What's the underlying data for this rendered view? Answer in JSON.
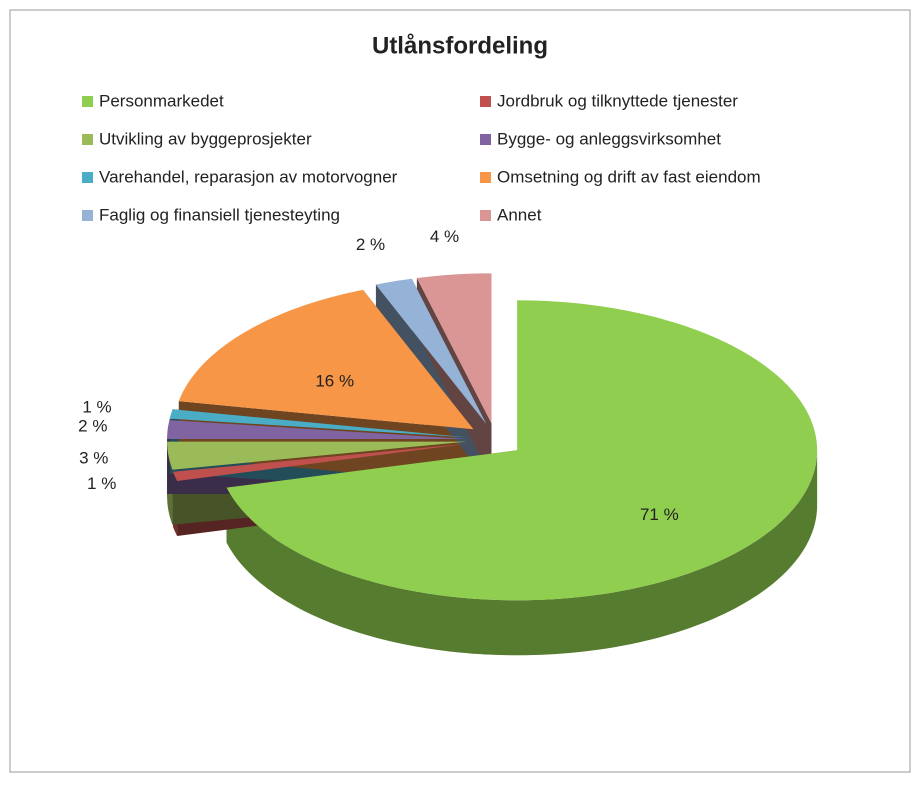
{
  "chart_data": {
    "type": "pie3d",
    "title": "Utlånsfordeling",
    "categories": [
      "Personmarkedet",
      "Jordbruk og tilknyttede tjenester",
      "Utvikling av byggeprosjekter",
      "Bygge- og anleggsvirksomhet",
      "Varehandel, reparasjon av motorvogner",
      "Omsetning og drift av fast eiendom",
      "Faglig og finansiell tjenesteyting",
      "Annet"
    ],
    "values": [
      71,
      1,
      3,
      2,
      1,
      16,
      2,
      4
    ],
    "value_labels": [
      "71 %",
      "1 %",
      "3 %",
      "2 %",
      "1 %",
      "16 %",
      "2 %",
      "4 %"
    ],
    "colors": [
      "#8fce4f",
      "#c0504d",
      "#9bbb59",
      "#8064a2",
      "#4bacc6",
      "#f79646",
      "#95b3d7",
      "#d99694"
    ],
    "legend": "top"
  }
}
